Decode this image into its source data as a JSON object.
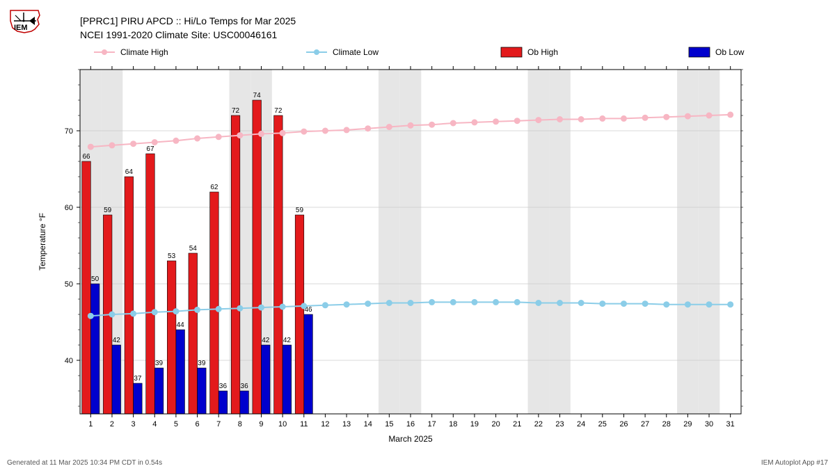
{
  "title_line1": "[PPRC1] PIRU APCD :: Hi/Lo Temps for Mar 2025",
  "title_line2": "NCEI 1991-2020 Climate Site: USC00046161",
  "xlabel": "March 2025",
  "ylabel": "Temperature °F",
  "footer_left": "Generated at 11 Mar 2025 10:34 PM CDT in 0.54s",
  "footer_right": "IEM Autoplot App #17",
  "legend": {
    "items": [
      {
        "label": "Climate High",
        "type": "line",
        "color": "#f7b6c3"
      },
      {
        "label": "Climate Low",
        "type": "line",
        "color": "#8bcde8"
      },
      {
        "label": "Ob High",
        "type": "bar",
        "color": "#e31a1c"
      },
      {
        "label": "Ob Low",
        "type": "bar",
        "color": "#0000cd"
      }
    ]
  },
  "chart": {
    "type": "bar+line",
    "background_color": "#ffffff",
    "plot_bg": "#ffffff",
    "weekend_shade": "#e6e6e6",
    "grid_color": "#cccccc",
    "border_color": "#000000",
    "tick_color": "#000000",
    "tick_fontsize": 11,
    "label_fontsize": 12,
    "title_fontsize": 14,
    "datalabel_fontsize": 10,
    "xlim": [
      0.5,
      31.5
    ],
    "ylim": [
      33,
      78
    ],
    "y_major_step": 10,
    "y_major_ticks": [
      40,
      50,
      60,
      70
    ],
    "days": [
      1,
      2,
      3,
      4,
      5,
      6,
      7,
      8,
      9,
      10,
      11,
      12,
      13,
      14,
      15,
      16,
      17,
      18,
      19,
      20,
      21,
      22,
      23,
      24,
      25,
      26,
      27,
      28,
      29,
      30,
      31
    ],
    "weekend_days": [
      1,
      2,
      8,
      9,
      15,
      16,
      22,
      23,
      29,
      30
    ],
    "bar_group_width": 0.82,
    "ob_high": {
      "color": "#e31a1c",
      "edge": "#000000",
      "values": {
        "1": 66,
        "2": 59,
        "3": 64,
        "4": 67,
        "5": 53,
        "6": 54,
        "7": 62,
        "8": 72,
        "9": 74,
        "10": 72,
        "11": 59
      }
    },
    "ob_low": {
      "color": "#0000cd",
      "edge": "#000000",
      "values": {
        "1": 50,
        "2": 42,
        "3": 37,
        "4": 39,
        "5": 44,
        "6": 39,
        "7": 36,
        "8": 36,
        "9": 42,
        "10": 42,
        "11": 46
      }
    },
    "climate_high": {
      "color": "#f7b6c3",
      "marker_fill": "#f7b6c3",
      "marker_edge": "#f7b6c3",
      "marker_size": 4,
      "line_width": 2,
      "values": [
        67.9,
        68.1,
        68.3,
        68.5,
        68.7,
        69.0,
        69.2,
        69.4,
        69.6,
        69.7,
        69.9,
        70.0,
        70.1,
        70.3,
        70.5,
        70.7,
        70.8,
        71.0,
        71.1,
        71.2,
        71.3,
        71.4,
        71.5,
        71.5,
        71.6,
        71.6,
        71.7,
        71.8,
        71.9,
        72.0,
        72.1
      ]
    },
    "climate_low": {
      "color": "#8bcde8",
      "marker_fill": "#8bcde8",
      "marker_edge": "#8bcde8",
      "marker_size": 4,
      "line_width": 2,
      "values": [
        45.8,
        46.0,
        46.1,
        46.3,
        46.4,
        46.6,
        46.7,
        46.8,
        46.9,
        47.0,
        47.1,
        47.2,
        47.3,
        47.4,
        47.5,
        47.5,
        47.6,
        47.6,
        47.6,
        47.6,
        47.6,
        47.5,
        47.5,
        47.5,
        47.4,
        47.4,
        47.4,
        47.3,
        47.3,
        47.3,
        47.3
      ]
    }
  }
}
